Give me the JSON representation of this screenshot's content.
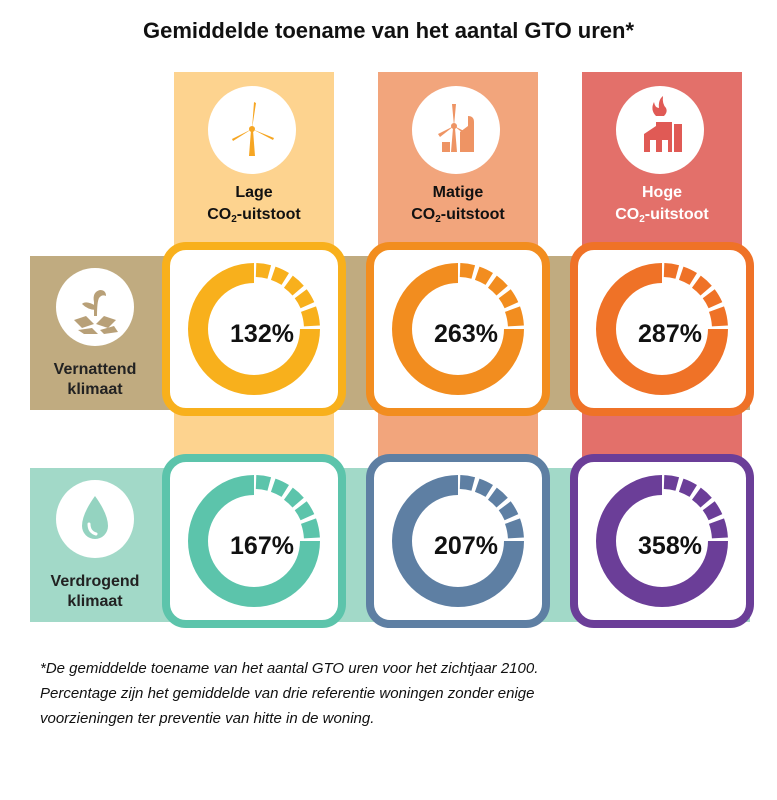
{
  "title": "Gemiddelde toename van het aantal GTO uren*",
  "columns": [
    {
      "label_line1": "Lage",
      "label_line2_main": "CO",
      "label_line2_sub": "2",
      "label_line2_rest": "-uitstoot",
      "icon": "wind-turbine-icon",
      "band_color": "#fdd38f",
      "label_color": "#111111"
    },
    {
      "label_line1": "Matige",
      "label_line2_main": "CO",
      "label_line2_sub": "2",
      "label_line2_rest": "-uitstoot",
      "icon": "factory-turbine-icon",
      "band_color": "#f2a57c",
      "label_color": "#111111"
    },
    {
      "label_line1": "Hoge",
      "label_line2_main": "CO",
      "label_line2_sub": "2",
      "label_line2_rest": "-uitstoot",
      "icon": "factory-fire-icon",
      "band_color": "#e3706a",
      "label_color": "#ffffff"
    }
  ],
  "rows": [
    {
      "label_line1": "Vernattend",
      "label_line2": "klimaat",
      "icon": "wet-ground-plant-icon",
      "band_color": "#c0ab80"
    },
    {
      "label_line1": "Verdrogend",
      "label_line2": "klimaat",
      "icon": "water-drop-icon",
      "band_color": "#a2d9c8"
    }
  ],
  "chart_data": {
    "type": "table",
    "title": "Gemiddelde toename van het aantal GTO uren*",
    "row_labels": [
      "Vernattend klimaat",
      "Verdrogend klimaat"
    ],
    "column_labels": [
      "Lage CO2-uitstoot",
      "Matige CO2-uitstoot",
      "Hoge CO2-uitstoot"
    ],
    "cells": [
      [
        {
          "value_label": "132%",
          "value": 132,
          "color": "#f8b01c"
        },
        {
          "value_label": "263%",
          "value": 263,
          "color": "#f28d1f"
        },
        {
          "value_label": "287%",
          "value": 287,
          "color": "#ef7227"
        }
      ],
      [
        {
          "value_label": "167%",
          "value": 167,
          "color": "#5cc4ab"
        },
        {
          "value_label": "207%",
          "value": 207,
          "color": "#5e7fa3"
        },
        {
          "value_label": "358%",
          "value": 358,
          "color": "#6b3e98"
        }
      ]
    ]
  },
  "footnote": {
    "line1": "*De gemiddelde toename van het aantal GTO uren voor het zichtjaar 2100.",
    "line2": "Percentage zijn het gemiddelde van drie referentie woningen zonder enige",
    "line3": "voorzieningen ter preventie van hitte in de woning."
  }
}
